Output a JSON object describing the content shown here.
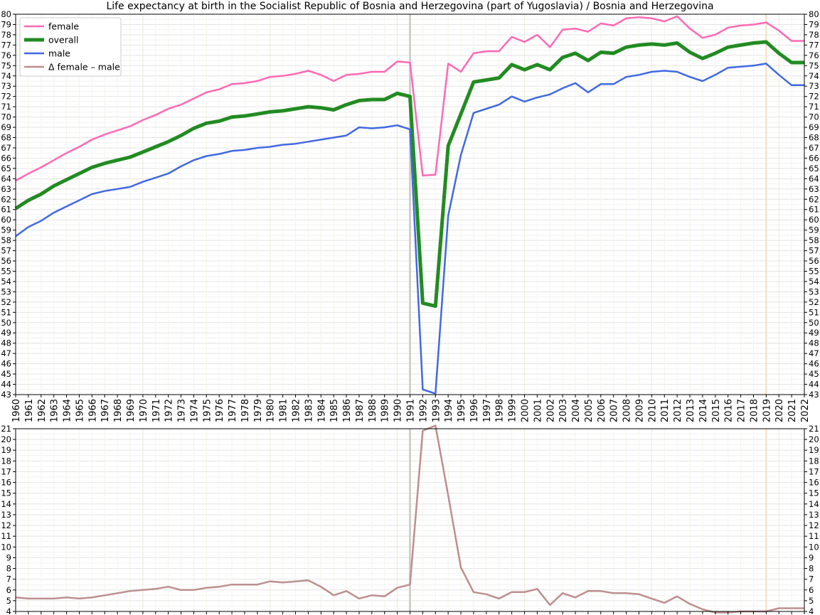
{
  "chart_data": [
    {
      "type": "line",
      "title": "Life expectancy at birth in the Socialist Republic of Bosnia and Herzegovina (part of Yugoslavia)  /  Bosnia and Herzegovina",
      "xlabel": "",
      "ylabel": "",
      "xlim": [
        1960,
        2022
      ],
      "ylim": [
        43,
        80
      ],
      "grid": true,
      "legend_position": "top-left",
      "x": [
        1960,
        1961,
        1962,
        1963,
        1964,
        1965,
        1966,
        1967,
        1968,
        1969,
        1970,
        1971,
        1972,
        1973,
        1974,
        1975,
        1976,
        1977,
        1978,
        1979,
        1980,
        1981,
        1982,
        1983,
        1984,
        1985,
        1986,
        1987,
        1988,
        1989,
        1990,
        1991,
        1992,
        1993,
        1994,
        1995,
        1996,
        1997,
        1998,
        1999,
        2000,
        2001,
        2002,
        2003,
        2004,
        2005,
        2006,
        2007,
        2008,
        2009,
        2010,
        2011,
        2012,
        2013,
        2014,
        2015,
        2016,
        2017,
        2018,
        2019,
        2020,
        2021,
        2022
      ],
      "series": [
        {
          "name": "female",
          "color": "#ff69b4",
          "values": [
            63.8,
            64.5,
            65.1,
            65.8,
            66.5,
            67.1,
            67.8,
            68.3,
            68.7,
            69.1,
            69.7,
            70.2,
            70.8,
            71.2,
            71.8,
            72.4,
            72.7,
            73.2,
            73.3,
            73.5,
            73.9,
            74.0,
            74.2,
            74.5,
            74.1,
            73.5,
            74.1,
            74.2,
            74.4,
            74.4,
            75.4,
            75.3,
            64.3,
            64.4,
            75.2,
            74.4,
            76.2,
            76.4,
            76.4,
            77.8,
            77.3,
            78.0,
            76.8,
            78.5,
            78.6,
            78.3,
            79.1,
            78.9,
            79.6,
            79.7,
            79.6,
            79.3,
            79.8,
            78.6,
            77.7,
            78.0,
            78.7,
            78.9,
            79.0,
            79.2,
            78.4,
            77.4,
            77.4
          ]
        },
        {
          "name": "overall",
          "color": "#228b22",
          "values": [
            61.1,
            61.9,
            62.5,
            63.3,
            63.9,
            64.5,
            65.1,
            65.5,
            65.8,
            66.1,
            66.6,
            67.1,
            67.6,
            68.2,
            68.9,
            69.4,
            69.6,
            70.0,
            70.1,
            70.3,
            70.5,
            70.6,
            70.8,
            71.0,
            70.9,
            70.7,
            71.2,
            71.6,
            71.7,
            71.7,
            72.3,
            72.0,
            51.9,
            51.6,
            67.2,
            70.3,
            73.4,
            73.6,
            73.8,
            75.1,
            74.6,
            75.1,
            74.6,
            75.8,
            76.2,
            75.5,
            76.3,
            76.2,
            76.8,
            77.0,
            77.1,
            77.0,
            77.2,
            76.3,
            75.7,
            76.2,
            76.8,
            77.0,
            77.2,
            77.3,
            76.2,
            75.3,
            75.3
          ]
        },
        {
          "name": "male",
          "color": "#4169e1",
          "values": [
            58.4,
            59.3,
            59.9,
            60.7,
            61.3,
            61.9,
            62.5,
            62.8,
            63.0,
            63.2,
            63.7,
            64.1,
            64.5,
            65.2,
            65.8,
            66.2,
            66.4,
            66.7,
            66.8,
            67.0,
            67.1,
            67.3,
            67.4,
            67.6,
            67.8,
            68.0,
            68.2,
            69.0,
            68.9,
            69.0,
            69.2,
            68.8,
            43.5,
            43.1,
            60.4,
            66.3,
            70.4,
            70.8,
            71.2,
            72.0,
            71.5,
            71.9,
            72.2,
            72.8,
            73.3,
            72.4,
            73.2,
            73.2,
            73.9,
            74.1,
            74.4,
            74.5,
            74.4,
            73.9,
            73.5,
            74.1,
            74.8,
            74.9,
            75.0,
            75.2,
            74.1,
            73.1,
            73.1
          ]
        }
      ]
    },
    {
      "type": "line",
      "xlim": [
        1960,
        2022
      ],
      "ylim": [
        4,
        21
      ],
      "grid": true,
      "x": [
        1960,
        1961,
        1962,
        1963,
        1964,
        1965,
        1966,
        1967,
        1968,
        1969,
        1970,
        1971,
        1972,
        1973,
        1974,
        1975,
        1976,
        1977,
        1978,
        1979,
        1980,
        1981,
        1982,
        1983,
        1984,
        1985,
        1986,
        1987,
        1988,
        1989,
        1990,
        1991,
        1992,
        1993,
        1994,
        1995,
        1996,
        1997,
        1998,
        1999,
        2000,
        2001,
        2002,
        2003,
        2004,
        2005,
        2006,
        2007,
        2008,
        2009,
        2010,
        2011,
        2012,
        2013,
        2014,
        2015,
        2016,
        2017,
        2018,
        2019,
        2020,
        2021,
        2022
      ],
      "series": [
        {
          "name": "Δ female – male",
          "color": "#bc8f8f",
          "values": [
            5.3,
            5.2,
            5.2,
            5.2,
            5.3,
            5.2,
            5.3,
            5.5,
            5.7,
            5.9,
            6.0,
            6.1,
            6.3,
            6.0,
            6.0,
            6.2,
            6.3,
            6.5,
            6.5,
            6.5,
            6.8,
            6.7,
            6.8,
            6.9,
            6.3,
            5.5,
            5.9,
            5.2,
            5.5,
            5.4,
            6.2,
            6.5,
            20.8,
            21.3,
            14.8,
            8.1,
            5.8,
            5.6,
            5.2,
            5.8,
            5.8,
            6.1,
            4.6,
            5.7,
            5.3,
            5.9,
            5.9,
            5.7,
            5.7,
            5.6,
            5.2,
            4.8,
            5.4,
            4.7,
            4.2,
            3.9,
            3.9,
            4.0,
            4.0,
            4.0,
            4.3,
            4.3,
            4.3
          ]
        }
      ]
    }
  ],
  "marker_years": {
    "gray": 1991,
    "orange": 2019
  }
}
